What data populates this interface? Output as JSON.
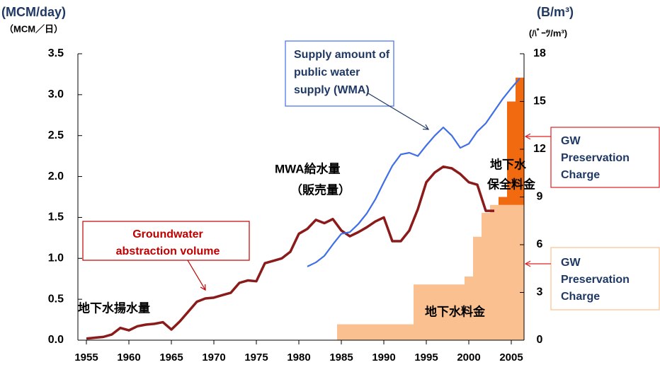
{
  "chart_data": {
    "type": "line",
    "y_label": "(MCM/day)",
    "y_label_jp": "（MCM／日）",
    "y2_label": "(B/m³)",
    "y2_label_jp": "(ﾊﾞｰﾂ/m³)",
    "xlim": [
      1954,
      2006.5
    ],
    "xticks": [
      1955,
      1960,
      1965,
      1970,
      1975,
      1980,
      1985,
      1990,
      1995,
      2000,
      2005
    ],
    "ylim": [
      0,
      3.5
    ],
    "yticks": [
      {
        "value": 0,
        "label": "0.0"
      },
      {
        "value": 0.5,
        "label": "0.5"
      },
      {
        "value": 1,
        "label": "1.0"
      },
      {
        "value": 1.5,
        "label": "1.5"
      },
      {
        "value": 2,
        "label": "2.0"
      },
      {
        "value": 2.5,
        "label": "2.5"
      },
      {
        "value": 3,
        "label": "3.0"
      },
      {
        "value": 3.5,
        "label": "3.5"
      }
    ],
    "y2lim": [
      0,
      18
    ],
    "y2ticks": [
      0,
      3,
      6,
      9,
      12,
      15,
      18
    ],
    "series": [
      {
        "kind": "step-bar",
        "axis": "y2",
        "color": "#fac090",
        "x": [
          1985,
          1986,
          1987,
          1988,
          1989,
          1990,
          1991,
          1992,
          1993,
          1994,
          1995,
          1996,
          1997,
          1998,
          1999,
          2000,
          2001,
          2002,
          2003,
          2004,
          2005,
          2006
        ],
        "values": [
          1,
          1,
          1,
          1,
          1,
          1,
          1,
          1,
          1,
          3.5,
          3.5,
          3.5,
          3.5,
          3.5,
          3.5,
          4,
          6.5,
          8,
          8.5,
          8.5,
          8.5,
          8.5
        ]
      },
      {
        "kind": "step-bar",
        "axis": "y2",
        "color": "#f26a10",
        "x": [
          2004,
          2005,
          2006
        ],
        "values": [
          0.5,
          6.5,
          8
        ]
      },
      {
        "kind": "line",
        "color": "#8b1a1a",
        "x": [
          1955,
          1956,
          1957,
          1958,
          1959,
          1960,
          1961,
          1962,
          1963,
          1964,
          1965,
          1966,
          1967,
          1968,
          1969,
          1970,
          1971,
          1972,
          1973,
          1974,
          1975,
          1976,
          1977,
          1978,
          1979,
          1980,
          1981,
          1982,
          1983,
          1984,
          1985,
          1986,
          1987,
          1988,
          1989,
          1990,
          1991,
          1992,
          1993,
          1994,
          1995,
          1996,
          1997,
          1998,
          1999,
          2000,
          2001,
          2002,
          2003
        ],
        "values": [
          0.02,
          0.03,
          0.04,
          0.07,
          0.15,
          0.12,
          0.17,
          0.19,
          0.2,
          0.22,
          0.13,
          0.23,
          0.35,
          0.47,
          0.51,
          0.52,
          0.55,
          0.58,
          0.7,
          0.73,
          0.72,
          0.94,
          0.97,
          1.0,
          1.08,
          1.3,
          1.36,
          1.47,
          1.43,
          1.48,
          1.34,
          1.27,
          1.32,
          1.38,
          1.45,
          1.5,
          1.21,
          1.21,
          1.34,
          1.6,
          1.93,
          2.05,
          2.12,
          2.1,
          2.03,
          1.93,
          1.9,
          1.58,
          1.58
        ]
      },
      {
        "kind": "line",
        "color": "#3f6ee8",
        "x": [
          1981,
          1982,
          1983,
          1984,
          1985,
          1986,
          1987,
          1988,
          1989,
          1990,
          1991,
          1992,
          1993,
          1994,
          1995,
          1996,
          1997,
          1998,
          1999,
          2000,
          2001,
          2002,
          2003,
          2004,
          2005,
          2006
        ],
        "values": [
          0.9,
          0.95,
          1.03,
          1.17,
          1.3,
          1.32,
          1.42,
          1.55,
          1.72,
          1.93,
          2.13,
          2.27,
          2.29,
          2.25,
          2.38,
          2.5,
          2.6,
          2.5,
          2.35,
          2.4,
          2.55,
          2.65,
          2.8,
          2.95,
          3.08,
          3.2
        ]
      }
    ],
    "annotations": [
      {
        "lines": [
          "Groundwater",
          "abstraction volume"
        ]
      },
      {
        "lines": [
          "地下水揚水量"
        ]
      },
      {
        "lines": [
          "Supply amount of",
          "public water",
          "supply (WMA)"
        ]
      },
      {
        "lines": [
          "MWA給水量",
          "（販売量）"
        ]
      },
      {
        "lines": [
          "地下水",
          "保全料金"
        ]
      },
      {
        "lines": [
          "地下水料金"
        ]
      },
      {
        "lines": [
          "GW",
          "Preservation",
          "Charge"
        ]
      },
      {
        "lines": [
          "GW",
          "Preservation",
          "Charge"
        ]
      }
    ]
  }
}
